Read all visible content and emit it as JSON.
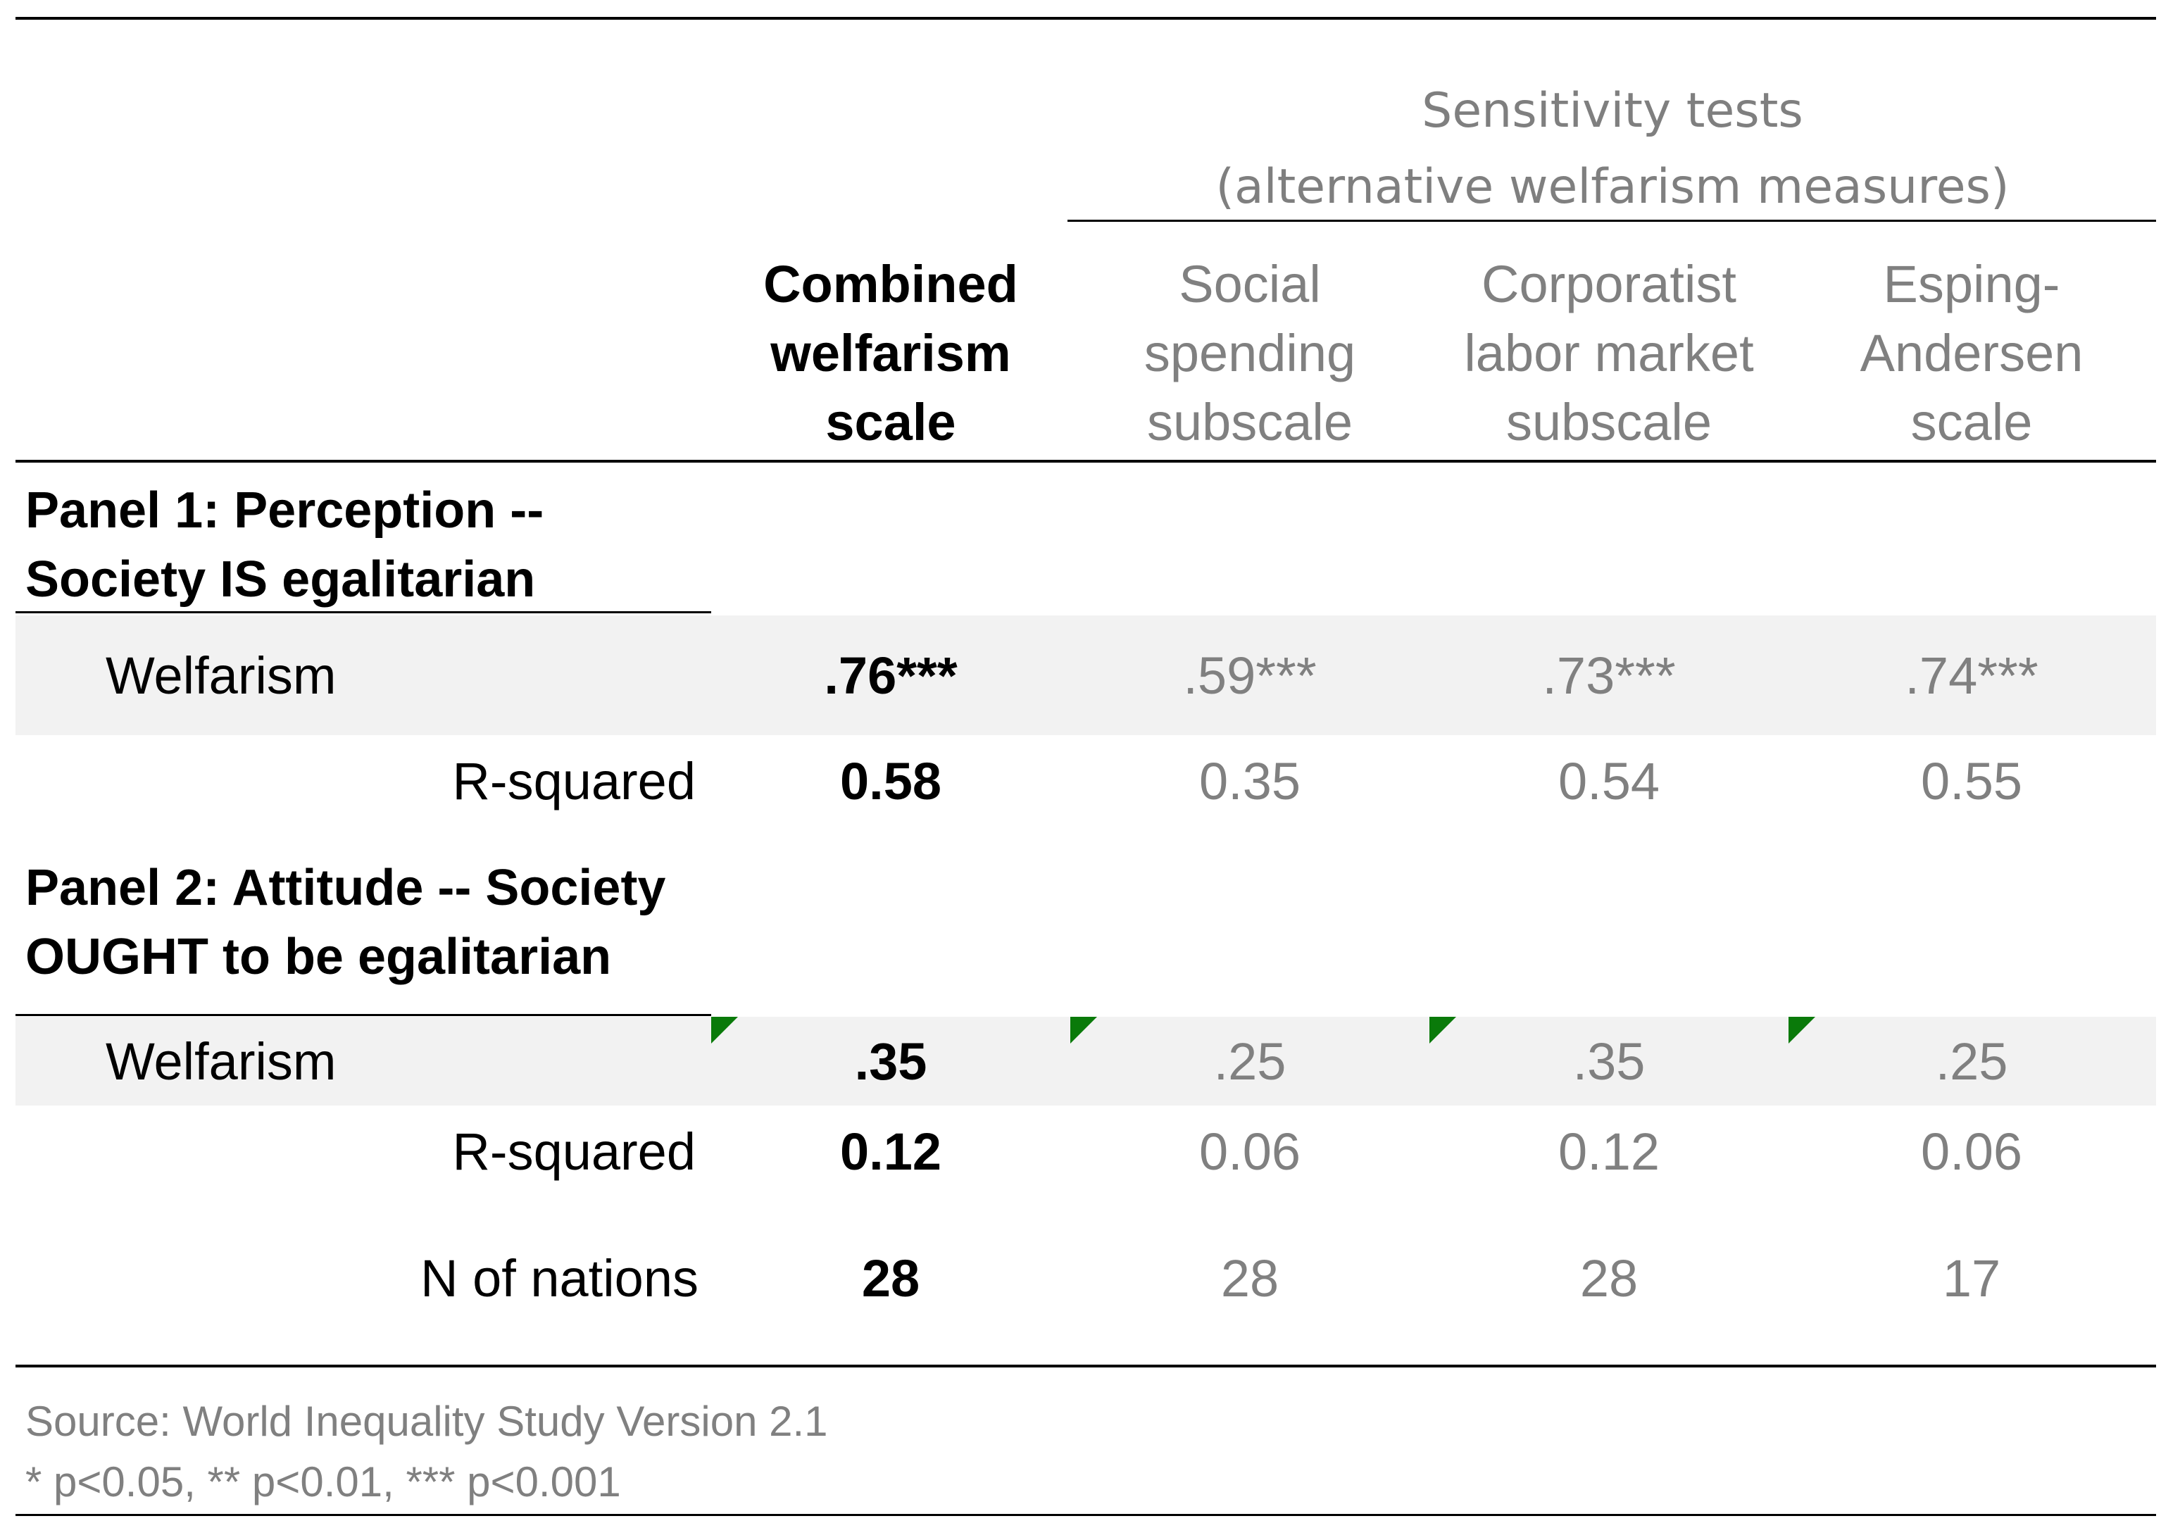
{
  "header": {
    "sensitivity_title_line1": "Sensitivity tests",
    "sensitivity_title_line2": "(alternative welfarism measures)",
    "columns": [
      {
        "label": "Combined\nwelfarism\nscale"
      },
      {
        "label": "Social\nspending\nsubscale"
      },
      {
        "label": "Corporatist\nlabor market\nsubscale"
      },
      {
        "label": "Esping-\nAndersen\nscale"
      }
    ]
  },
  "panel1": {
    "title_line1": "Panel 1: Perception --",
    "title_line2": "Society IS egalitarian",
    "welfarism_label": "Welfarism",
    "welfarism_values": [
      ".76***",
      ".59***",
      ".73***",
      ".74***"
    ],
    "rsq_label": "R-squared",
    "rsq_values": [
      "0.58",
      "0.35",
      "0.54",
      "0.55"
    ]
  },
  "panel2": {
    "title_line1": "Panel 2: Attitude -- Society",
    "title_line2": "OUGHT to be egalitarian",
    "welfarism_label": "Welfarism",
    "welfarism_values": [
      ".35",
      ".25",
      ".35",
      ".25"
    ],
    "rsq_label": "R-squared",
    "rsq_values": [
      "0.12",
      "0.06",
      "0.12",
      "0.06"
    ]
  },
  "nations": {
    "label": "N of nations",
    "values": [
      "28",
      "28",
      "28",
      "17"
    ]
  },
  "notes": {
    "source": "Source: World Inequality Study Version 2.1",
    "significance": "* p<0.05, ** p<0.01, *** p<0.001"
  },
  "colors": {
    "rule": "#000000",
    "band": "#f2f2f2",
    "muted_text": "#808080",
    "cell_flag": "#0a7a0a"
  }
}
